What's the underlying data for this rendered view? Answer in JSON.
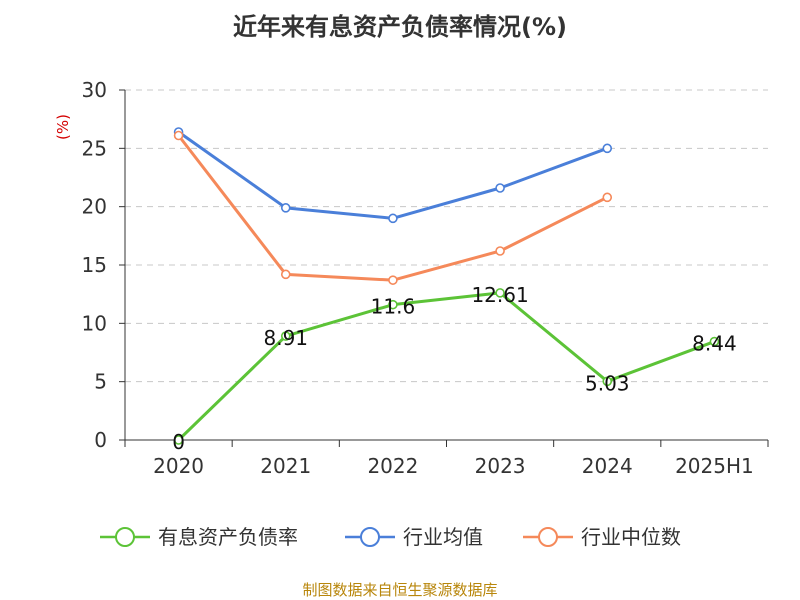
{
  "chart_data": {
    "type": "line",
    "title": "近年来有息资产负债率情况(%)",
    "y_unit": "(%)",
    "categories": [
      "2020",
      "2021",
      "2022",
      "2023",
      "2024",
      "2025H1"
    ],
    "ylim": [
      0,
      30
    ],
    "yticks": [
      "0",
      "5",
      "10",
      "15",
      "20",
      "25",
      "30"
    ],
    "grid": true,
    "legend_position": "bottom",
    "series": [
      {
        "name": "有息资产负债率",
        "color": "#5cc337",
        "values": [
          0,
          8.91,
          11.6,
          12.61,
          5.03,
          8.44
        ],
        "labels": [
          "0",
          "8.91",
          "11.6",
          "12.61",
          "5.03",
          "8.44"
        ]
      },
      {
        "name": "行业均值",
        "color": "#4a7fd9",
        "values": [
          26.4,
          19.9,
          19.0,
          21.6,
          25.0,
          null
        ]
      },
      {
        "name": "行业中位数",
        "color": "#f5895a",
        "values": [
          26.1,
          14.2,
          13.7,
          16.2,
          20.8,
          null
        ]
      }
    ],
    "source": "制图数据来自恒生聚源数据库"
  }
}
